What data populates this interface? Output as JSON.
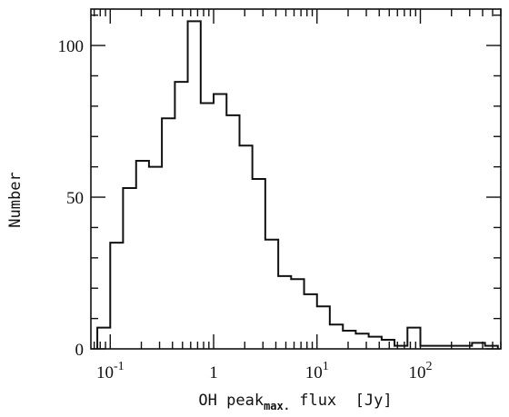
{
  "chart_data": {
    "type": "bar",
    "title": "",
    "xlabel": {
      "main": "OH peak",
      "sub": "max.",
      "rest": " flux  [Jy]"
    },
    "ylabel": "Number",
    "x_scale": "log",
    "xlim": [
      0.065,
      600
    ],
    "ylim": [
      0,
      112
    ],
    "x_ticks": [
      {
        "base": "10",
        "exp": "-1",
        "value": 0.1
      },
      {
        "base": "1",
        "exp": "",
        "value": 1
      },
      {
        "base": "10",
        "exp": "1",
        "value": 10
      },
      {
        "base": "10",
        "exp": "2",
        "value": 100
      }
    ],
    "y_ticks": [
      {
        "label": "0",
        "value": 0
      },
      {
        "label": "50",
        "value": 50
      },
      {
        "label": "100",
        "value": 100
      }
    ],
    "bin_edges": [
      0.075,
      0.1,
      0.133,
      0.178,
      0.237,
      0.316,
      0.422,
      0.562,
      0.75,
      1.0,
      1.334,
      1.78,
      2.37,
      3.16,
      4.22,
      5.62,
      7.5,
      10.0,
      13.3,
      17.8,
      23.7,
      31.6,
      42.2,
      56.2,
      75.0,
      100,
      133,
      178,
      237,
      316,
      422,
      562
    ],
    "values": [
      7,
      35,
      53,
      62,
      60,
      76,
      88,
      108,
      81,
      84,
      77,
      67,
      56,
      36,
      24,
      23,
      18,
      14,
      8,
      6,
      5,
      4,
      3,
      1,
      7,
      1,
      1,
      1,
      1,
      2,
      1
    ],
    "grid": false,
    "legend": "none"
  }
}
